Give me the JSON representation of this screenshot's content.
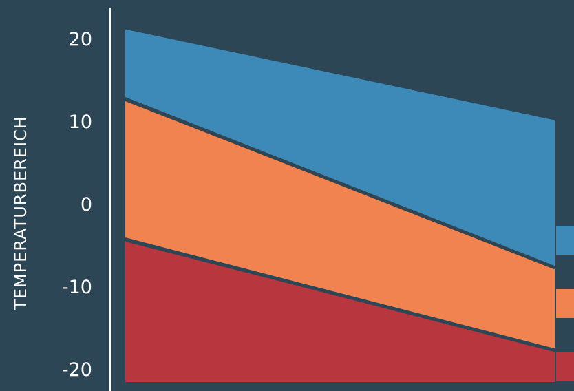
{
  "chart_data": {
    "type": "area",
    "title": "",
    "xlabel": "",
    "ylabel": "TEMPERATURBEREICH",
    "ylim": [
      -20,
      20
    ],
    "yticks": [
      20,
      10,
      0,
      -10,
      -20
    ],
    "x": [
      0,
      1
    ],
    "grid": false,
    "series": [
      {
        "upper": [
          21.2,
          10.2
        ],
        "lower": [
          13.0,
          -7.5
        ],
        "color": "#3d8ab8"
      },
      {
        "upper": [
          12.5,
          -7.8
        ],
        "lower": [
          -4.0,
          -17.5
        ],
        "color": "#f0834f"
      },
      {
        "upper": [
          -4.5,
          -17.8
        ],
        "lower": [
          -21.5,
          -21.5
        ],
        "color": "#b8363e"
      }
    ],
    "colors": {
      "background": "#2c4655",
      "axis": "#ffffff",
      "blue": "#3d8ab8",
      "orange": "#f0834f",
      "red": "#b8363e"
    }
  }
}
